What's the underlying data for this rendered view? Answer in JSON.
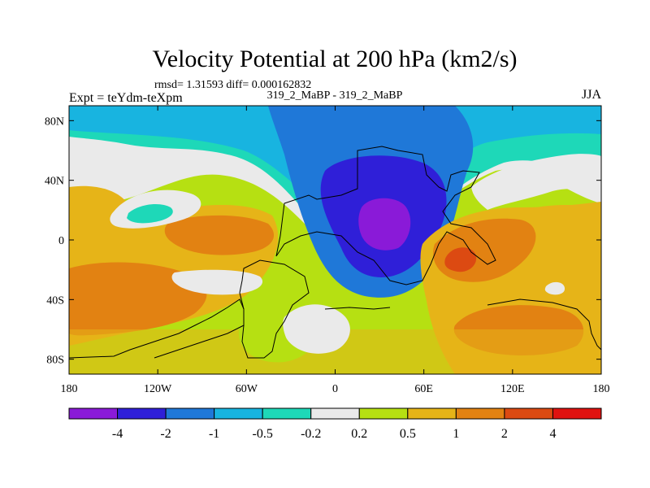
{
  "chart_data": {
    "type": "heatmap",
    "title": "Velocity Potential at 200 hPa (km2/s)",
    "stats": "rmsd= 1.31593 diff= 0.000162832",
    "header_left": "Expt = teYdm-teXpm",
    "header_center": "319_2_MaBP - 319_2_MaBP",
    "header_right": "JJA",
    "x_ticks": [
      "180",
      "120W",
      "60W",
      "0",
      "60E",
      "120E",
      "180"
    ],
    "y_ticks": [
      "80N",
      "40N",
      "0",
      "40S",
      "80S"
    ],
    "lon_range": [
      -180,
      180
    ],
    "lat_range": [
      -90,
      90
    ],
    "colorbar_labels": [
      "-4",
      "-2",
      "-1",
      "-0.5",
      "-0.2",
      "0.2",
      "0.5",
      "1",
      "2",
      "4"
    ],
    "colorbar_colors": [
      "#8a1ad8",
      "#2f1fd8",
      "#1f78d8",
      "#18b4e0",
      "#1ed8b8",
      "#eaeaea",
      "#b6e012",
      "#e6b418",
      "#e28212",
      "#dc4a12",
      "#e01210"
    ],
    "contour_bins": [
      "< -4",
      "-4 to -2",
      "-2 to -1",
      "-1 to -0.5",
      "-0.5 to -0.2",
      "-0.2 to 0.2",
      "0.2 to 0.5",
      "0.5 to 1",
      "1 to 2",
      "2 to 4",
      "> 4"
    ],
    "field_summary": {
      "minimum_center": {
        "lon": 35,
        "lat": 10,
        "level": "< -4"
      },
      "maximum_center": {
        "lon": 85,
        "lat": -5,
        "level": "2 to 4"
      }
    }
  }
}
